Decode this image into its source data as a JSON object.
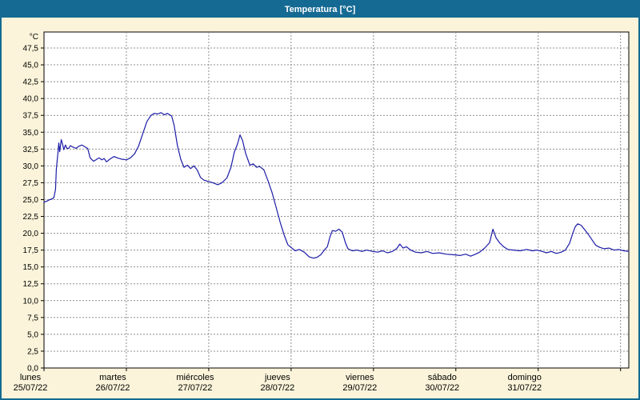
{
  "title": "Temperatura [°C]",
  "colors": {
    "title_bar": "#156a93",
    "window_border": "#156a93",
    "background": "#fbf4da",
    "plot_background": "#ffffff",
    "grid": "#8f8f8f",
    "line": "#1c1ca8",
    "text": "#000000"
  },
  "chart_data": {
    "type": "line",
    "title": "Temperatura [°C]",
    "unit_label": "°C",
    "ylim": [
      0,
      47.5
    ],
    "x_max": 7.1,
    "grid": true,
    "legend": "none",
    "y_ticks": [
      {
        "value": 0,
        "label": "0,0"
      },
      {
        "value": 2.5,
        "label": "2,5"
      },
      {
        "value": 5,
        "label": "5,0"
      },
      {
        "value": 7.5,
        "label": "7,5"
      },
      {
        "value": 10,
        "label": "10,0"
      },
      {
        "value": 12.5,
        "label": "12,5"
      },
      {
        "value": 15,
        "label": "15,0"
      },
      {
        "value": 17.5,
        "label": "17,5"
      },
      {
        "value": 20,
        "label": "20,0"
      },
      {
        "value": 22.5,
        "label": "22,5"
      },
      {
        "value": 25,
        "label": "25,0"
      },
      {
        "value": 27.5,
        "label": "27,5"
      },
      {
        "value": 30,
        "label": "30,0"
      },
      {
        "value": 32.5,
        "label": "32,5"
      },
      {
        "value": 35,
        "label": "35,0"
      },
      {
        "value": 37.5,
        "label": "37,5"
      },
      {
        "value": 40,
        "label": "40,0"
      },
      {
        "value": 42.5,
        "label": "42,5"
      },
      {
        "value": 45,
        "label": "45,0"
      },
      {
        "value": 47.5,
        "label": "47,5"
      }
    ],
    "x_days": [
      {
        "day": 0,
        "name": "lunes",
        "date": "25/07/22"
      },
      {
        "day": 1,
        "name": "martes",
        "date": "26/07/22"
      },
      {
        "day": 2,
        "name": "miércoles",
        "date": "27/07/22"
      },
      {
        "day": 3,
        "name": "jueves",
        "date": "28/07/22"
      },
      {
        "day": 4,
        "name": "viernes",
        "date": "29/07/22"
      },
      {
        "day": 5,
        "name": "sábado",
        "date": "30/07/22"
      },
      {
        "day": 6,
        "name": "domingo",
        "date": "31/07/22"
      }
    ],
    "series": [
      {
        "name": "Temperatura",
        "color": "#1c1ca8",
        "points": [
          [
            0,
            24.6
          ],
          [
            0.04,
            24.8
          ],
          [
            0.07,
            25
          ],
          [
            0.1,
            25.1
          ],
          [
            0.12,
            25.3
          ],
          [
            0.14,
            26.5
          ],
          [
            0.15,
            29.5
          ],
          [
            0.17,
            32
          ],
          [
            0.18,
            33.4
          ],
          [
            0.19,
            32.1
          ],
          [
            0.2,
            33
          ],
          [
            0.21,
            33.9
          ],
          [
            0.23,
            33
          ],
          [
            0.24,
            32.4
          ],
          [
            0.26,
            33.1
          ],
          [
            0.28,
            32.6
          ],
          [
            0.3,
            32.6
          ],
          [
            0.32,
            33
          ],
          [
            0.35,
            32.8
          ],
          [
            0.39,
            32.6
          ],
          [
            0.42,
            32.9
          ],
          [
            0.46,
            33.1
          ],
          [
            0.5,
            32.8
          ],
          [
            0.53,
            32.6
          ],
          [
            0.56,
            31.2
          ],
          [
            0.6,
            30.7
          ],
          [
            0.63,
            30.9
          ],
          [
            0.67,
            31.2
          ],
          [
            0.7,
            30.9
          ],
          [
            0.73,
            31.1
          ],
          [
            0.76,
            30.6
          ],
          [
            0.8,
            31
          ],
          [
            0.85,
            31.4
          ],
          [
            0.89,
            31.2
          ],
          [
            0.94,
            31
          ],
          [
            1,
            30.9
          ],
          [
            1.05,
            31.2
          ],
          [
            1.1,
            31.8
          ],
          [
            1.15,
            33
          ],
          [
            1.2,
            34.8
          ],
          [
            1.25,
            36.6
          ],
          [
            1.3,
            37.5
          ],
          [
            1.34,
            37.8
          ],
          [
            1.38,
            37.7
          ],
          [
            1.42,
            37.9
          ],
          [
            1.46,
            37.6
          ],
          [
            1.5,
            37.8
          ],
          [
            1.55,
            37.4
          ],
          [
            1.58,
            36
          ],
          [
            1.62,
            33
          ],
          [
            1.66,
            31
          ],
          [
            1.7,
            29.8
          ],
          [
            1.74,
            30.1
          ],
          [
            1.78,
            29.6
          ],
          [
            1.82,
            30
          ],
          [
            1.86,
            29.4
          ],
          [
            1.9,
            28.3
          ],
          [
            1.94,
            27.9
          ],
          [
            1.99,
            27.7
          ],
          [
            2.05,
            27.5
          ],
          [
            2.11,
            27.2
          ],
          [
            2.16,
            27.5
          ],
          [
            2.22,
            28.2
          ],
          [
            2.27,
            29.8
          ],
          [
            2.31,
            32
          ],
          [
            2.35,
            33.3
          ],
          [
            2.38,
            34.6
          ],
          [
            2.41,
            33.8
          ],
          [
            2.45,
            31.8
          ],
          [
            2.5,
            30.1
          ],
          [
            2.54,
            30.3
          ],
          [
            2.58,
            29.8
          ],
          [
            2.62,
            29.9
          ],
          [
            2.67,
            29.4
          ],
          [
            2.72,
            27.8
          ],
          [
            2.77,
            26
          ],
          [
            2.82,
            23.8
          ],
          [
            2.87,
            21.5
          ],
          [
            2.92,
            19.6
          ],
          [
            2.96,
            18.3
          ],
          [
            3,
            17.9
          ],
          [
            3.05,
            17.4
          ],
          [
            3.1,
            17.6
          ],
          [
            3.16,
            17.2
          ],
          [
            3.22,
            16.5
          ],
          [
            3.27,
            16.3
          ],
          [
            3.31,
            16.4
          ],
          [
            3.36,
            16.8
          ],
          [
            3.41,
            17.6
          ],
          [
            3.44,
            18
          ],
          [
            3.47,
            19.4
          ],
          [
            3.5,
            20.4
          ],
          [
            3.54,
            20.3
          ],
          [
            3.58,
            20.6
          ],
          [
            3.62,
            20.2
          ],
          [
            3.66,
            18.6
          ],
          [
            3.69,
            17.7
          ],
          [
            3.74,
            17.4
          ],
          [
            3.8,
            17.5
          ],
          [
            3.86,
            17.3
          ],
          [
            3.92,
            17.5
          ],
          [
            3.99,
            17.3
          ],
          [
            4.05,
            17.2
          ],
          [
            4.11,
            17.4
          ],
          [
            4.17,
            17.1
          ],
          [
            4.23,
            17.3
          ],
          [
            4.28,
            17.7
          ],
          [
            4.32,
            18.4
          ],
          [
            4.36,
            17.8
          ],
          [
            4.4,
            18
          ],
          [
            4.45,
            17.5
          ],
          [
            4.51,
            17.2
          ],
          [
            4.58,
            17.1
          ],
          [
            4.65,
            17.3
          ],
          [
            4.72,
            17
          ],
          [
            4.8,
            17.1
          ],
          [
            4.88,
            16.9
          ],
          [
            4.98,
            16.8
          ],
          [
            5.05,
            16.7
          ],
          [
            5.12,
            16.9
          ],
          [
            5.18,
            16.6
          ],
          [
            5.24,
            16.9
          ],
          [
            5.29,
            17.2
          ],
          [
            5.35,
            17.8
          ],
          [
            5.41,
            18.6
          ],
          [
            5.45,
            20.6
          ],
          [
            5.49,
            19.3
          ],
          [
            5.53,
            18.6
          ],
          [
            5.58,
            18
          ],
          [
            5.63,
            17.6
          ],
          [
            5.7,
            17.5
          ],
          [
            5.78,
            17.4
          ],
          [
            5.86,
            17.6
          ],
          [
            5.93,
            17.4
          ],
          [
            5.98,
            17.5
          ],
          [
            6.05,
            17.3
          ],
          [
            6.1,
            17.1
          ],
          [
            6.16,
            17.3
          ],
          [
            6.22,
            17
          ],
          [
            6.28,
            17.2
          ],
          [
            6.33,
            17.5
          ],
          [
            6.38,
            18.5
          ],
          [
            6.42,
            20
          ],
          [
            6.45,
            21
          ],
          [
            6.48,
            21.4
          ],
          [
            6.52,
            21.2
          ],
          [
            6.56,
            20.6
          ],
          [
            6.61,
            19.8
          ],
          [
            6.66,
            18.9
          ],
          [
            6.7,
            18.2
          ],
          [
            6.75,
            17.9
          ],
          [
            6.8,
            17.7
          ],
          [
            6.86,
            17.8
          ],
          [
            6.92,
            17.5
          ],
          [
            6.98,
            17.6
          ],
          [
            7.04,
            17.4
          ],
          [
            7.1,
            17.3
          ]
        ]
      }
    ]
  }
}
